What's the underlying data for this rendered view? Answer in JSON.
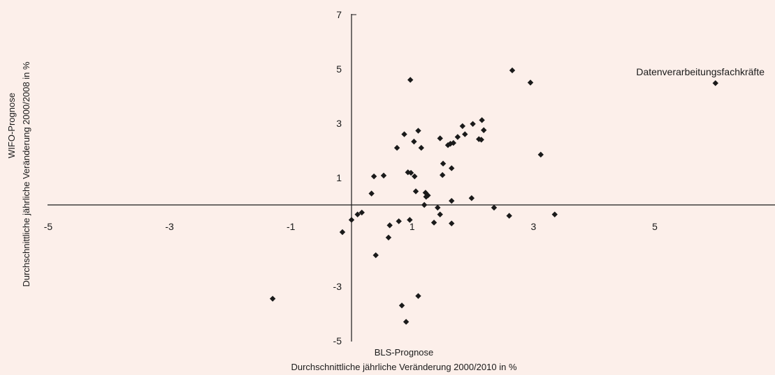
{
  "chart_data": {
    "type": "scatter",
    "xlabel_line1": "BLS-Prognose",
    "xlabel_line2": "Durchschnittliche jährliche Veränderung 2000/2010 in %",
    "ylabel_line1": "WIFO-Prognose",
    "ylabel_line2": "Durchschnittliche jährliche Veränderung 2000/2008 in %",
    "xlim": [
      -5,
      7
    ],
    "ylim": [
      -5,
      7
    ],
    "x_ticks": [
      -5,
      -3,
      -1,
      1,
      3,
      5
    ],
    "y_ticks": [
      7,
      5,
      3,
      1,
      -3,
      -5
    ],
    "annotation": {
      "text": "Datenverarbeitungsfachkräfte",
      "x": 6.0,
      "y": 4.48
    },
    "grid": false,
    "points": [
      [
        6.0,
        4.48
      ],
      [
        2.65,
        4.95
      ],
      [
        2.95,
        4.5
      ],
      [
        0.97,
        4.6
      ],
      [
        2.15,
        3.12
      ],
      [
        2.0,
        2.98
      ],
      [
        1.83,
        2.9
      ],
      [
        2.18,
        2.75
      ],
      [
        1.1,
        2.73
      ],
      [
        0.87,
        2.6
      ],
      [
        1.87,
        2.6
      ],
      [
        1.75,
        2.5
      ],
      [
        1.46,
        2.45
      ],
      [
        2.1,
        2.42
      ],
      [
        2.14,
        2.4
      ],
      [
        1.03,
        2.33
      ],
      [
        1.68,
        2.28
      ],
      [
        1.63,
        2.25
      ],
      [
        1.59,
        2.2
      ],
      [
        0.75,
        2.1
      ],
      [
        1.15,
        2.1
      ],
      [
        3.12,
        1.85
      ],
      [
        1.51,
        1.52
      ],
      [
        1.65,
        1.35
      ],
      [
        0.93,
        1.2
      ],
      [
        0.98,
        1.18
      ],
      [
        1.04,
        1.05
      ],
      [
        0.37,
        1.05
      ],
      [
        0.53,
        1.08
      ],
      [
        1.5,
        1.1
      ],
      [
        1.06,
        0.5
      ],
      [
        1.22,
        0.45
      ],
      [
        0.33,
        0.42
      ],
      [
        1.26,
        0.35
      ],
      [
        1.23,
        0.3
      ],
      [
        1.98,
        0.25
      ],
      [
        1.65,
        0.15
      ],
      [
        1.2,
        0.0
      ],
      [
        1.42,
        -0.1
      ],
      [
        2.35,
        -0.1
      ],
      [
        0.17,
        -0.28
      ],
      [
        0.1,
        -0.35
      ],
      [
        1.46,
        -0.35
      ],
      [
        2.6,
        -0.4
      ],
      [
        3.35,
        -0.35
      ],
      [
        0.0,
        -0.55
      ],
      [
        0.96,
        -0.55
      ],
      [
        0.78,
        -0.6
      ],
      [
        1.36,
        -0.65
      ],
      [
        1.65,
        -0.68
      ],
      [
        0.63,
        -0.75
      ],
      [
        -0.15,
        -1.0
      ],
      [
        0.61,
        -1.2
      ],
      [
        0.4,
        -1.85
      ],
      [
        -1.3,
        -3.45
      ],
      [
        1.1,
        -3.35
      ],
      [
        0.83,
        -3.7
      ],
      [
        0.9,
        -4.3
      ]
    ]
  }
}
